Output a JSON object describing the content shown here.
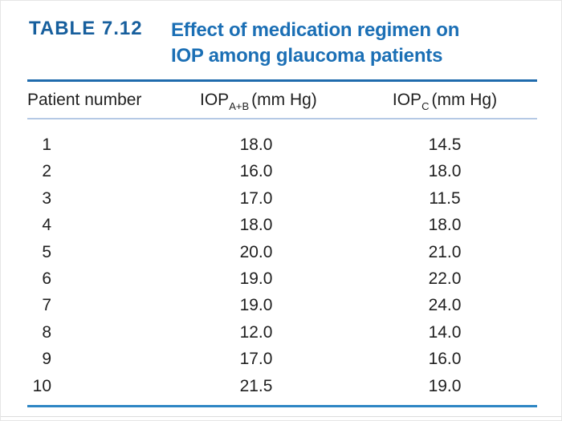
{
  "title": {
    "label": "TABLE 7.12",
    "lines": [
      "Effect of medication regimen on",
      "IOP among glaucoma patients"
    ]
  },
  "table": {
    "headers": {
      "patient": "Patient number",
      "col2": {
        "base": "IOP",
        "sub": "A+B",
        "unit": "(mm Hg)"
      },
      "col3": {
        "base": "IOP",
        "sub": "C",
        "unit": "(mm Hg)"
      }
    },
    "rows": [
      {
        "patient": "1",
        "iop_ab": "18.0",
        "iop_c": "14.5"
      },
      {
        "patient": "2",
        "iop_ab": "16.0",
        "iop_c": "18.0"
      },
      {
        "patient": "3",
        "iop_ab": "17.0",
        "iop_c": "11.5"
      },
      {
        "patient": "4",
        "iop_ab": "18.0",
        "iop_c": "18.0"
      },
      {
        "patient": "5",
        "iop_ab": "20.0",
        "iop_c": "21.0"
      },
      {
        "patient": "6",
        "iop_ab": "19.0",
        "iop_c": "22.0"
      },
      {
        "patient": "7",
        "iop_ab": "19.0",
        "iop_c": "24.0"
      },
      {
        "patient": "8",
        "iop_ab": "12.0",
        "iop_c": "14.0"
      },
      {
        "patient": "9",
        "iop_ab": "17.0",
        "iop_c": "16.0"
      },
      {
        "patient": "10",
        "iop_ab": "21.5",
        "iop_c": "19.0"
      }
    ]
  },
  "colors": {
    "label_blue": "#175f9d",
    "title_blue": "#1b6fb5",
    "rule_dark": "#1f6bad",
    "rule_light": "#b5c9e5",
    "rule_bottom": "#2e86c4",
    "text": "#1f1f1f"
  },
  "chart_data": {
    "type": "table",
    "title": "TABLE 7.12 Effect of medication regimen on IOP among glaucoma patients",
    "columns": [
      "Patient number",
      "IOP_A+B (mm Hg)",
      "IOP_C (mm Hg)"
    ],
    "rows": [
      [
        1,
        18.0,
        14.5
      ],
      [
        2,
        16.0,
        18.0
      ],
      [
        3,
        17.0,
        11.5
      ],
      [
        4,
        18.0,
        18.0
      ],
      [
        5,
        20.0,
        21.0
      ],
      [
        6,
        19.0,
        22.0
      ],
      [
        7,
        19.0,
        24.0
      ],
      [
        8,
        12.0,
        14.0
      ],
      [
        9,
        17.0,
        16.0
      ],
      [
        10,
        21.5,
        19.0
      ]
    ]
  }
}
